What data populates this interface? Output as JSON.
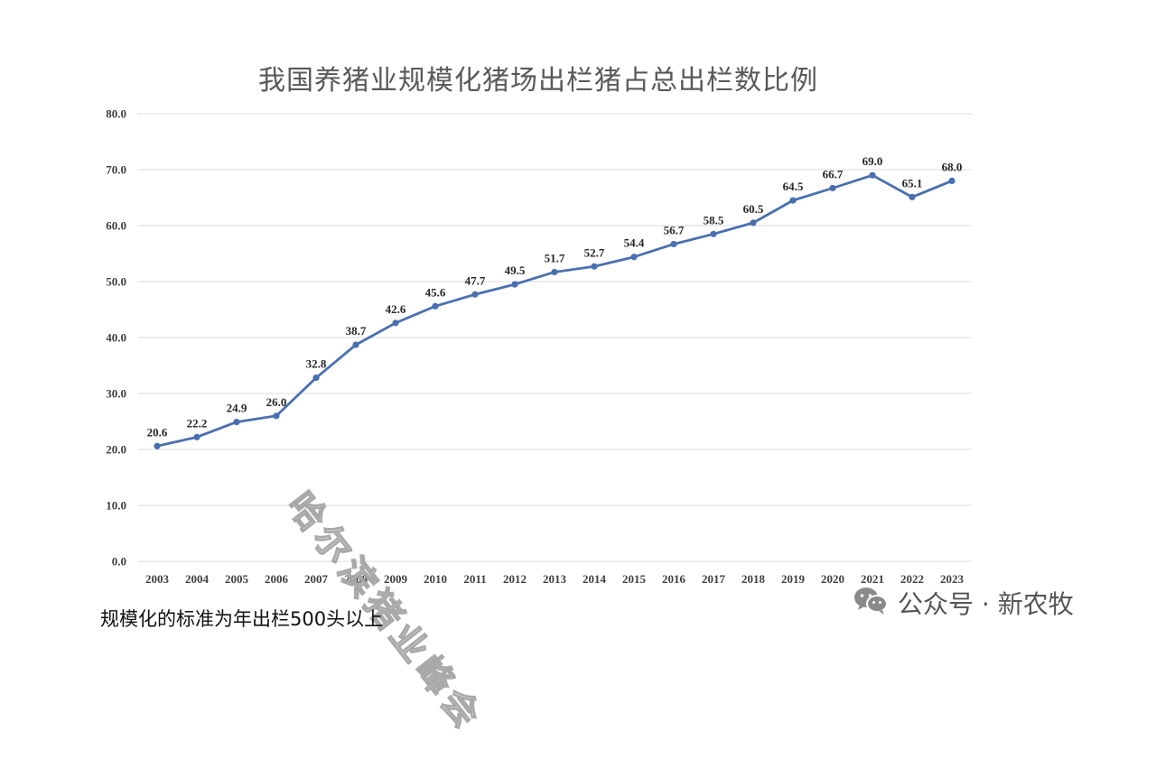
{
  "chart_data": {
    "type": "line",
    "title": "我国养猪业规模化猪场出栏猪占总出栏数比例",
    "xlabel": "",
    "ylabel": "",
    "ylim": [
      0,
      80
    ],
    "yticks": [
      "0.0",
      "10.0",
      "20.0",
      "30.0",
      "40.0",
      "50.0",
      "60.0",
      "70.0",
      "80.0"
    ],
    "categories": [
      "2003",
      "2004",
      "2005",
      "2006",
      "2007",
      "2008",
      "2009",
      "2010",
      "2011",
      "2012",
      "2013",
      "2014",
      "2015",
      "2016",
      "2017",
      "2018",
      "2019",
      "2020",
      "2021",
      "2022",
      "2023"
    ],
    "series": [
      {
        "name": "",
        "values": [
          20.6,
          22.2,
          24.9,
          26.0,
          32.8,
          38.7,
          42.6,
          45.6,
          47.7,
          49.5,
          51.7,
          52.7,
          54.4,
          56.7,
          58.5,
          60.5,
          64.5,
          66.7,
          69.0,
          65.1,
          68.0
        ],
        "labels": [
          "20.6",
          "22.2",
          "24.9",
          "26.0",
          "32.8",
          "38.7",
          "42.6",
          "45.6",
          "47.7",
          "49.5",
          "51.7",
          "52.7",
          "54.4",
          "56.7",
          "58.5",
          "60.5",
          "64.5",
          "66.7",
          "69.0",
          "65.1",
          "68.0"
        ]
      }
    ],
    "grid": true,
    "legend": "none",
    "line_color": "#4A6FB0",
    "grid_color": "#D9D9D9"
  },
  "footnote": "规模化的标准为年出栏500头以上",
  "watermark": "哈尔滨猪业峰会",
  "account": {
    "icon": "wechat-icon",
    "text": "公众号 · 新农牧"
  }
}
